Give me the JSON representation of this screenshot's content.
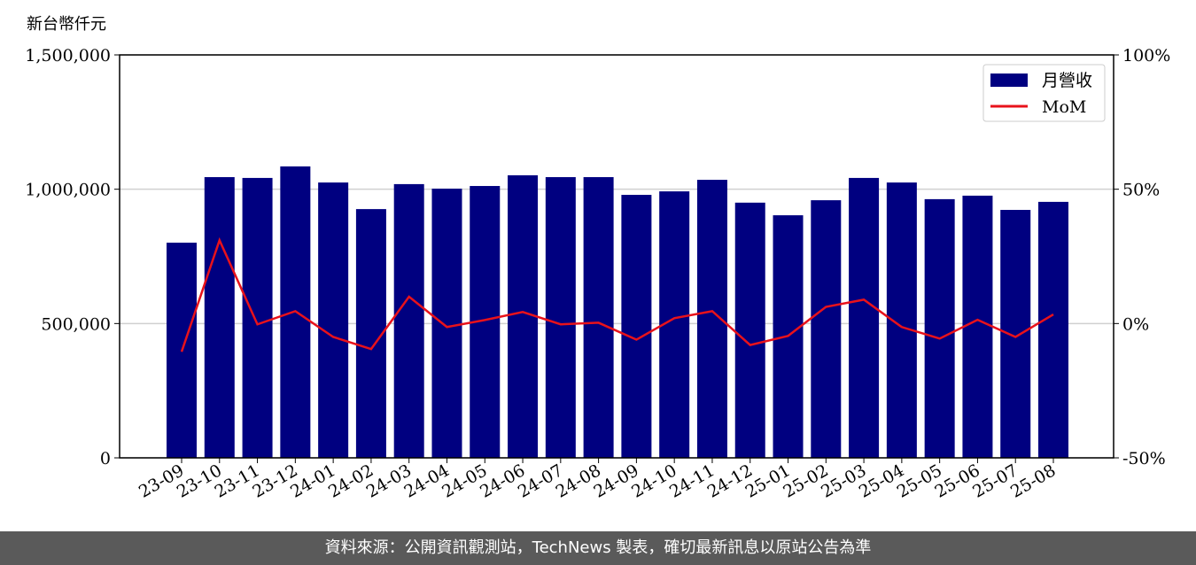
{
  "chart_data": {
    "type": "bar",
    "y_label": "新台幣仟元",
    "footer": "資料來源：公開資訊觀測站，TechNews 製表，確切最新訊息以原站公告為準",
    "categories": [
      "23-09",
      "23-10",
      "23-11",
      "23-12",
      "24-01",
      "24-02",
      "24-03",
      "24-04",
      "24-05",
      "24-06",
      "24-07",
      "24-08",
      "24-09",
      "24-10",
      "24-11",
      "24-12",
      "25-01",
      "25-02",
      "25-03",
      "25-04",
      "25-05",
      "25-06",
      "25-07",
      "25-08"
    ],
    "series": [
      {
        "name": "月營收",
        "type": "bar",
        "color": "#000080",
        "values": [
          801000,
          1045000,
          1042000,
          1085000,
          1025000,
          926000,
          1019000,
          1002000,
          1012000,
          1052000,
          1045000,
          1045000,
          979000,
          992000,
          1035000,
          950000,
          903000,
          959000,
          1042000,
          1025000,
          963000,
          976000,
          923000,
          953000
        ]
      },
      {
        "name": "MoM",
        "type": "line",
        "color": "#e8121b",
        "axis": "y2",
        "values": [
          -10.5,
          31,
          -0.3,
          4.6,
          -5,
          -9.5,
          10,
          -1.3,
          1.3,
          4.3,
          -0.3,
          0.3,
          -6,
          2,
          4.6,
          -8,
          -4.6,
          6.2,
          8.9,
          -1.3,
          -5.6,
          1.4,
          -5,
          3.4
        ]
      }
    ],
    "ylim": [
      0,
      1500000
    ],
    "yticks": [
      {
        "value": 0,
        "label": "0"
      },
      {
        "value": 500000,
        "label": "500,000"
      },
      {
        "value": 1000000,
        "label": "1,000,000"
      },
      {
        "value": 1500000,
        "label": "1,500,000"
      }
    ],
    "y2lim": [
      -50,
      100
    ],
    "y2ticks": [
      {
        "value": -50,
        "label": "-50%"
      },
      {
        "value": 0,
        "label": "0%"
      },
      {
        "value": 50,
        "label": "50%"
      },
      {
        "value": 100,
        "label": "100%"
      }
    ],
    "grid": true,
    "legend": "upper right"
  }
}
